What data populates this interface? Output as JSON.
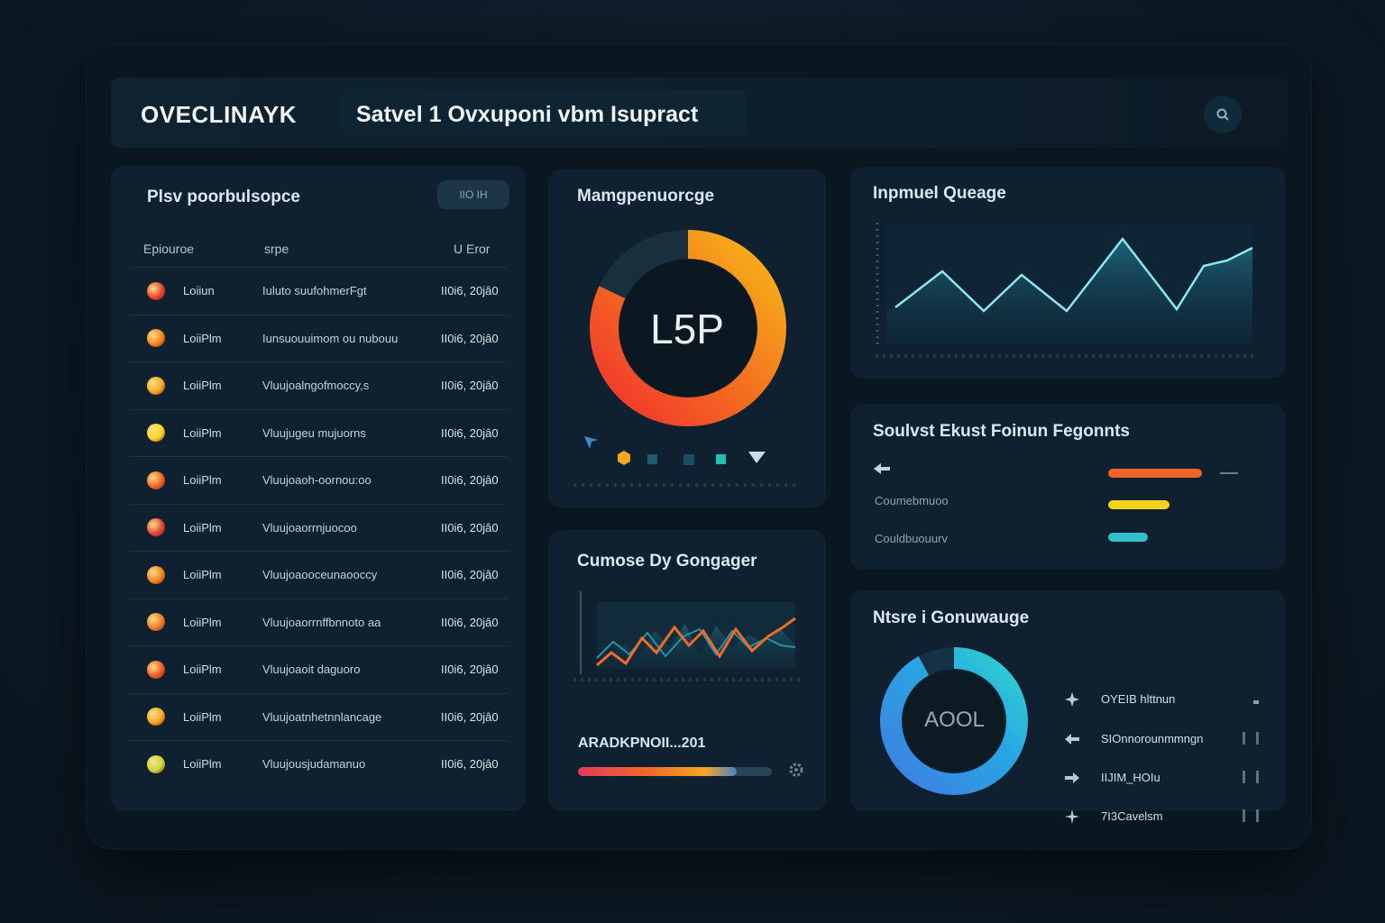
{
  "app": {
    "brand": "OVECLINAYK",
    "title": "Satvel 1 Ovxuponi vbm Isupract"
  },
  "header": {
    "search_icon": "search-icon"
  },
  "table": {
    "title": "Plsv poorbulsopce",
    "button_label": "IIO IH",
    "columns": [
      "Epiouroe",
      "srpe",
      "U Eror"
    ],
    "rows": [
      {
        "name": "Loiiun",
        "desc": "Iuluto suufohmerFgt",
        "time": "II0i6, 20jâ0",
        "color": "#e8452a"
      },
      {
        "name": "LoiiPlm",
        "desc": "Iunsuouuimom ou nubouu",
        "time": "II0i6, 20jâ0",
        "color": "#f5821f"
      },
      {
        "name": "LoiiPlm",
        "desc": "Vluujoalngofmoccy,s",
        "time": "II0i6, 20jâ0",
        "color": "#f5a623"
      },
      {
        "name": "LoiiPlm",
        "desc": "Vluujugeu mujuorns",
        "time": "II0i6, 20jâ0",
        "color": "#f7d51d"
      },
      {
        "name": "LoiiPlm",
        "desc": "Vluujoaoh-oornou:oo",
        "time": "II0i6, 20jâ0",
        "color": "#f0641f"
      },
      {
        "name": "LoiiPlm",
        "desc": "Vluujoaorrnjuocoo",
        "time": "II0i6, 20jâ0",
        "color": "#e0482d"
      },
      {
        "name": "LoiiPlm",
        "desc": "Vluujoaooceunaooccy",
        "time": "II0i6, 20jâ0",
        "color": "#f5821f"
      },
      {
        "name": "LoiiPlm",
        "desc": "Vluujoaorrnffbnnoto aa",
        "time": "II0i6, 20jâ0",
        "color": "#f27a22"
      },
      {
        "name": "LoiiPlm",
        "desc": "Vluujoaoit daguoro",
        "time": "II0i6, 20jâ0",
        "color": "#ee5a24"
      },
      {
        "name": "LoiiPlm",
        "desc": "Vluujoatnhetnnlancage",
        "time": "II0i6, 20jâ0",
        "color": "#f5a623"
      },
      {
        "name": "LoiiPlm",
        "desc": "Vluujousjudamanuo",
        "time": "II0i6, 20jâ0",
        "color": "#c8d63a"
      }
    ]
  },
  "donut": {
    "title": "Mamgpenuorcge",
    "value": "L5P",
    "fraction": 0.82,
    "icons": [
      "cursor-icon",
      "hexagon-icon",
      "square-icon",
      "square-icon",
      "square-icon",
      "diamond-icon"
    ]
  },
  "trend": {
    "title": "Cumose Dy Gongager"
  },
  "progress": {
    "label": "ARADKPNOII...201",
    "fraction": 0.82
  },
  "area": {
    "title": "Inpmuel Queage"
  },
  "status": {
    "title": "Soulvst Ekust Foinun Fegonnts",
    "items": [
      {
        "label": "",
        "fraction": 0.72,
        "color": "#f0642b"
      },
      {
        "label": "Coumebmuoo",
        "fraction": 0.47,
        "color": "#f3d21c"
      },
      {
        "label": "Couldbuouurv",
        "fraction": 0.3,
        "color": "#33c0cc"
      }
    ]
  },
  "gauge": {
    "title": "Ntsre i Gonuwauge",
    "value": "AOOL",
    "fraction": 0.92,
    "legend": [
      {
        "label": "OYEIB hlttnun",
        "icon": "star-icon"
      },
      {
        "label": "SIOnnorounmmngn",
        "icon": "arrow-left-icon"
      },
      {
        "label": "IIJIM_HOIu",
        "icon": "arrow-right-icon"
      },
      {
        "label": "7I3Cavelsm",
        "icon": "sparkle-icon"
      }
    ]
  }
}
